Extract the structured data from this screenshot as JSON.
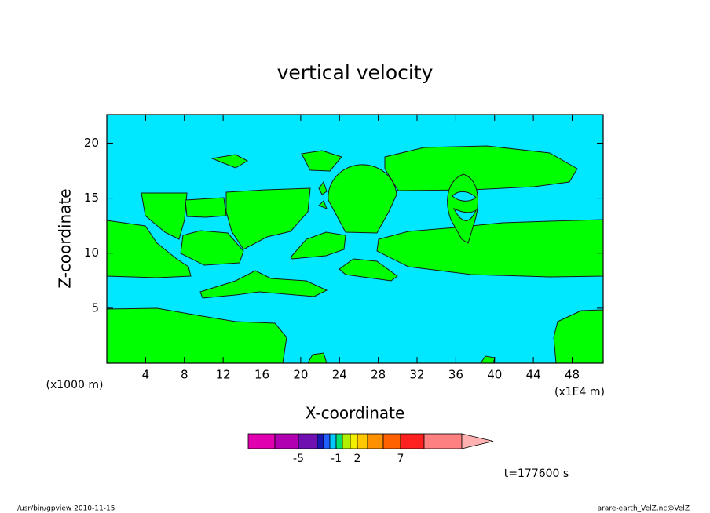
{
  "chart_data": {
    "type": "contour",
    "title": "vertical velocity",
    "xlabel": "X-coordinate",
    "ylabel": "Z-coordinate",
    "x_unit_left": "(x1000 m)",
    "x_unit_right": "(x1E4 m)",
    "xlim": [
      0,
      51.2
    ],
    "xticks": [
      4,
      8,
      12,
      16,
      20,
      24,
      28,
      32,
      36,
      40,
      44,
      48
    ],
    "ylim": [
      0,
      22.6
    ],
    "yticks": [
      5,
      10,
      15,
      20
    ],
    "background_color": "#00e8ff",
    "region_color": "#00ff00",
    "colorbar": {
      "colors": [
        "#e000b0",
        "#b000b0",
        "#7010b0",
        "#1818b0",
        "#2060ff",
        "#00c8ff",
        "#00e070",
        "#b0f000",
        "#f0f000",
        "#ffc800",
        "#ff9000",
        "#ff6000",
        "#ff2020",
        "#ff8080",
        "#ffb0b0"
      ],
      "ticks": [
        -5,
        -1,
        2,
        7
      ]
    },
    "annotation": "t=177600 s"
  },
  "footer": {
    "left": "/usr/bin/gpview   2010-11-15",
    "right": "arare-earth_VelZ.nc@VelZ"
  }
}
